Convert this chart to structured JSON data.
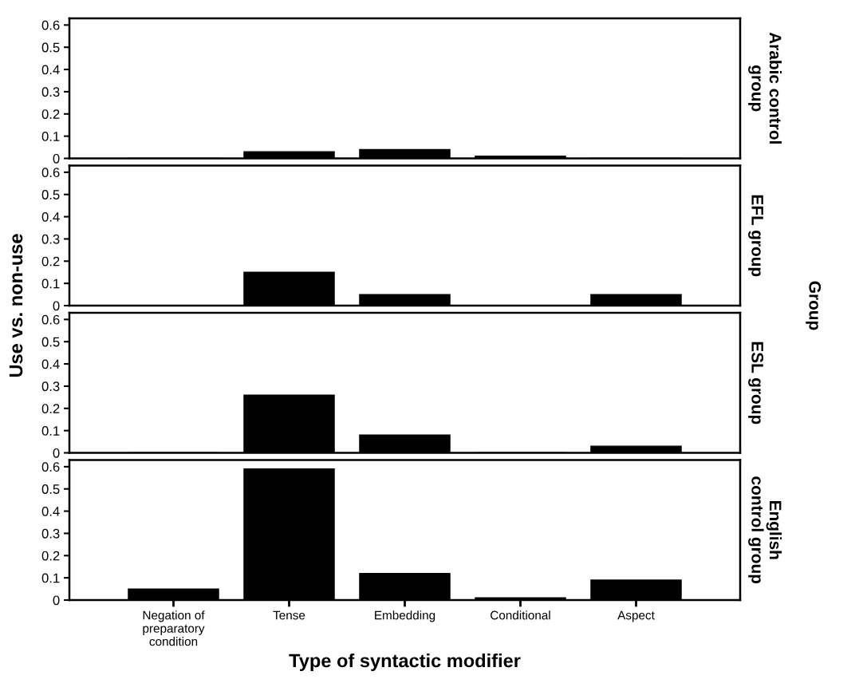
{
  "chart_data": [
    {
      "type": "bar",
      "categories": [
        null,
        null,
        null,
        null,
        null
      ],
      "values": [
        0,
        0.03,
        0.04,
        0.01,
        0
      ],
      "color": "#000000",
      "ylim": [
        0,
        0.63
      ],
      "yticks": [
        0,
        0.1,
        0.2,
        0.3,
        0.4,
        0.5,
        0.6
      ],
      "y2label": "Arabic control\ngroup",
      "tick_labels": "y",
      "grid": false,
      "legend": false
    },
    {
      "type": "bar",
      "categories": [
        null,
        null,
        null,
        null,
        null
      ],
      "values": [
        0,
        0.15,
        0.05,
        0,
        0.05
      ],
      "color": "#000000",
      "ylim": [
        0,
        0.63
      ],
      "yticks": [
        0,
        0.1,
        0.2,
        0.3,
        0.4,
        0.5,
        0.6
      ],
      "y2label": "EFL group",
      "ylabel": "Use vs. non-use",
      "annotations": [
        "Group"
      ],
      "tick_labels": "y",
      "grid": false,
      "legend": false
    },
    {
      "type": "bar",
      "categories": [
        null,
        null,
        null,
        null,
        null
      ],
      "values": [
        0,
        0.26,
        0.08,
        0,
        0.03
      ],
      "color": "#000000",
      "ylim": [
        0,
        0.63
      ],
      "yticks": [
        0,
        0.1,
        0.2,
        0.3,
        0.4,
        0.5,
        0.6
      ],
      "y2label": "ESL group",
      "tick_labels": "y",
      "grid": false,
      "legend": false
    },
    {
      "type": "bar",
      "categories": [
        "Negation of\npreparatory\ncondition",
        "Tense",
        "Embedding",
        "Conditional",
        "Aspect"
      ],
      "values": [
        0.05,
        0.59,
        0.12,
        0.01,
        0.09
      ],
      "color": "#000000",
      "ylim": [
        0,
        0.63
      ],
      "yticks": [
        0,
        0.1,
        0.2,
        0.3,
        0.4,
        0.5,
        0.6
      ],
      "y2label": "English\ncontrol group",
      "xlabel": "Type of syntactic modifier",
      "grid": false,
      "legend": false
    }
  ]
}
